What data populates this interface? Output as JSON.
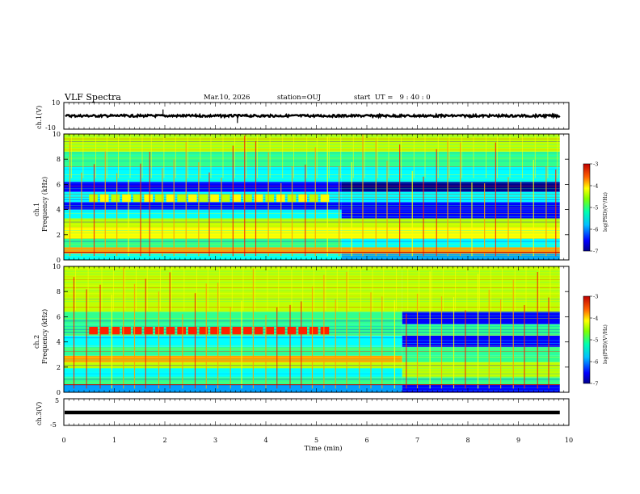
{
  "header": {
    "title": "VLF Spectra",
    "date": "Mar.10, 2026",
    "station": "station=OUJ",
    "start_ut": "start  UT =   9 : 40 : 0"
  },
  "chart_data": [
    {
      "type": "line",
      "panel": "ch1-waveform",
      "ylabel": "ch.1(V)",
      "ylim": [
        -10,
        10
      ],
      "yticks": [
        "10",
        "-10"
      ],
      "series": [
        {
          "values": [
            0,
            0.3,
            -0.4,
            0.5,
            -0.2,
            0.1,
            -0.6,
            0.4,
            1.6,
            -0.5,
            0.2,
            -0.3,
            0.5,
            -0.4,
            -1.8,
            0.3,
            -0.2,
            0.4,
            -0.5,
            0.2,
            0.6,
            -0.3,
            0.4,
            -0.5,
            0.3,
            -0.2,
            0.5,
            -0.4,
            0.2,
            -0.3,
            0.4,
            -0.5,
            0.3,
            -0.2,
            0.5,
            -0.4,
            0.6,
            -0.5,
            0.4,
            -0.3
          ]
        }
      ],
      "color": "#000000"
    },
    {
      "type": "heatmap",
      "panel": "ch1-spectrogram",
      "ylabel_top": "ch.1",
      "ylabel": "Frequency (kHz)",
      "ylim": [
        0,
        10
      ],
      "yticks": [
        "0",
        "2",
        "4",
        "6",
        "8",
        "10"
      ],
      "xlim": [
        0,
        10
      ],
      "colorbar": {
        "label": "log(PSD)(V²/Hz)",
        "range": [
          -7,
          -3
        ],
        "ticks": [
          "-3",
          "-4",
          "-5",
          "-6",
          "-7"
        ]
      },
      "bands": [
        {
          "from": 0,
          "to": 0.5,
          "level": -5.6
        },
        {
          "from": 0.5,
          "to": 1.0,
          "level": -4.2
        },
        {
          "from": 1.0,
          "to": 1.7,
          "level": -5.2
        },
        {
          "from": 1.7,
          "to": 2.6,
          "level": -4.6
        },
        {
          "from": 2.6,
          "to": 3.3,
          "level": -5.0
        },
        {
          "from": 3.3,
          "to": 4.0,
          "level": -5.4
        },
        {
          "from": 4.0,
          "to": 4.6,
          "level": -6.4
        },
        {
          "from": 4.6,
          "to": 5.4,
          "level": -5.6
        },
        {
          "from": 5.4,
          "to": 6.2,
          "level": -6.6
        },
        {
          "from": 6.2,
          "to": 7.4,
          "level": -5.8
        },
        {
          "from": 7.4,
          "to": 8.6,
          "level": -5.3
        },
        {
          "from": 8.6,
          "to": 10,
          "level": -5.0
        }
      ],
      "emission": {
        "t_start": 0.5,
        "t_end": 5.3,
        "f_low": 4.6,
        "f_high": 5.2,
        "level": -4.8
      },
      "change_time": 5.5,
      "late_levels": [
        {
          "from": 0,
          "to": 0.5,
          "level": -6.0
        },
        {
          "from": 1.0,
          "to": 3.3,
          "level": -5.4
        },
        {
          "from": 3.3,
          "to": 4.6,
          "level": -6.5
        },
        {
          "from": 5.4,
          "to": 6.2,
          "level": -6.8
        }
      ],
      "spike_times": [
        0.12,
        0.35,
        0.6,
        0.82,
        1.05,
        1.28,
        1.52,
        1.7,
        1.95,
        2.18,
        2.42,
        2.67,
        2.88,
        3.12,
        3.35,
        3.58,
        3.8,
        4.05,
        4.3,
        4.52,
        4.78,
        4.98,
        5.22,
        5.45,
        5.7,
        5.92,
        6.18,
        6.4,
        6.65,
        6.9,
        7.12,
        7.38,
        7.6,
        7.85,
        8.08,
        8.33,
        8.55,
        8.8,
        9.05,
        9.3,
        9.55,
        9.74
      ]
    },
    {
      "type": "heatmap",
      "panel": "ch2-spectrogram",
      "ylabel_top": "ch.2",
      "ylabel": "Frequency (kHz)",
      "ylim": [
        0,
        10
      ],
      "yticks": [
        "0",
        "2",
        "4",
        "6",
        "8",
        "10"
      ],
      "xlim": [
        0,
        10
      ],
      "colorbar": {
        "label": "log(PSD)(V²/Hz)",
        "range": [
          -7,
          -3
        ],
        "ticks": [
          "-3",
          "-4",
          "-5",
          "-6",
          "-7"
        ]
      },
      "bands": [
        {
          "from": 0,
          "to": 0.6,
          "level": -6.0
        },
        {
          "from": 0.6,
          "to": 1.2,
          "level": -5.3
        },
        {
          "from": 1.2,
          "to": 1.9,
          "level": -5.6
        },
        {
          "from": 1.9,
          "to": 2.4,
          "level": -4.7
        },
        {
          "from": 2.4,
          "to": 2.9,
          "level": -4.0
        },
        {
          "from": 2.9,
          "to": 3.6,
          "level": -5.2
        },
        {
          "from": 3.6,
          "to": 4.5,
          "level": -5.8
        },
        {
          "from": 4.5,
          "to": 5.4,
          "level": -5.1
        },
        {
          "from": 5.4,
          "to": 6.4,
          "level": -5.3
        },
        {
          "from": 6.4,
          "to": 8.2,
          "level": -5.0
        },
        {
          "from": 8.2,
          "to": 10,
          "level": -4.8
        }
      ],
      "emission": {
        "t_start": 0.5,
        "t_end": 5.3,
        "f_low": 4.6,
        "f_high": 5.2,
        "level": -3.8
      },
      "change_time": 6.7,
      "late_levels": [
        {
          "from": 0,
          "to": 0.6,
          "level": -6.4
        },
        {
          "from": 1.2,
          "to": 2.4,
          "level": -5.0
        },
        {
          "from": 2.4,
          "to": 2.9,
          "level": -5.2
        },
        {
          "from": 3.6,
          "to": 5.4,
          "level": -6.6
        },
        {
          "from": 5.4,
          "to": 6.4,
          "level": -6.5
        }
      ],
      "spike_times": [
        0.2,
        0.45,
        0.72,
        0.95,
        1.18,
        1.4,
        1.62,
        1.88,
        2.1,
        2.35,
        2.6,
        2.82,
        3.05,
        3.3,
        3.52,
        3.75,
        4.0,
        4.22,
        4.48,
        4.7,
        4.92,
        5.15,
        5.38,
        5.6,
        5.85,
        6.08,
        6.3,
        6.55,
        6.78,
        7.0,
        7.25,
        7.48,
        7.72,
        7.95,
        8.2,
        8.42,
        8.65,
        8.9,
        9.12,
        9.38,
        9.6
      ]
    },
    {
      "type": "line",
      "panel": "ch3-waveform",
      "ylabel": "ch.3(V)",
      "ylim": [
        -5,
        5
      ],
      "yticks": [
        "5",
        "-5"
      ],
      "xlabel": "Time (min)",
      "xticks": [
        "0",
        "1",
        "2",
        "3",
        "4",
        "5",
        "6",
        "7",
        "8",
        "9",
        "10"
      ],
      "series": [
        {
          "values": [
            0,
            0
          ]
        }
      ],
      "color": "#000000"
    }
  ],
  "colors": {
    "ramp": [
      "#00008c",
      "#0000ff",
      "#00a0ff",
      "#00ffff",
      "#30ff90",
      "#c0ff00",
      "#ffff00",
      "#ffa000",
      "#ff2000",
      "#b00000"
    ],
    "axes": "#000000",
    "background": "#ffffff"
  }
}
